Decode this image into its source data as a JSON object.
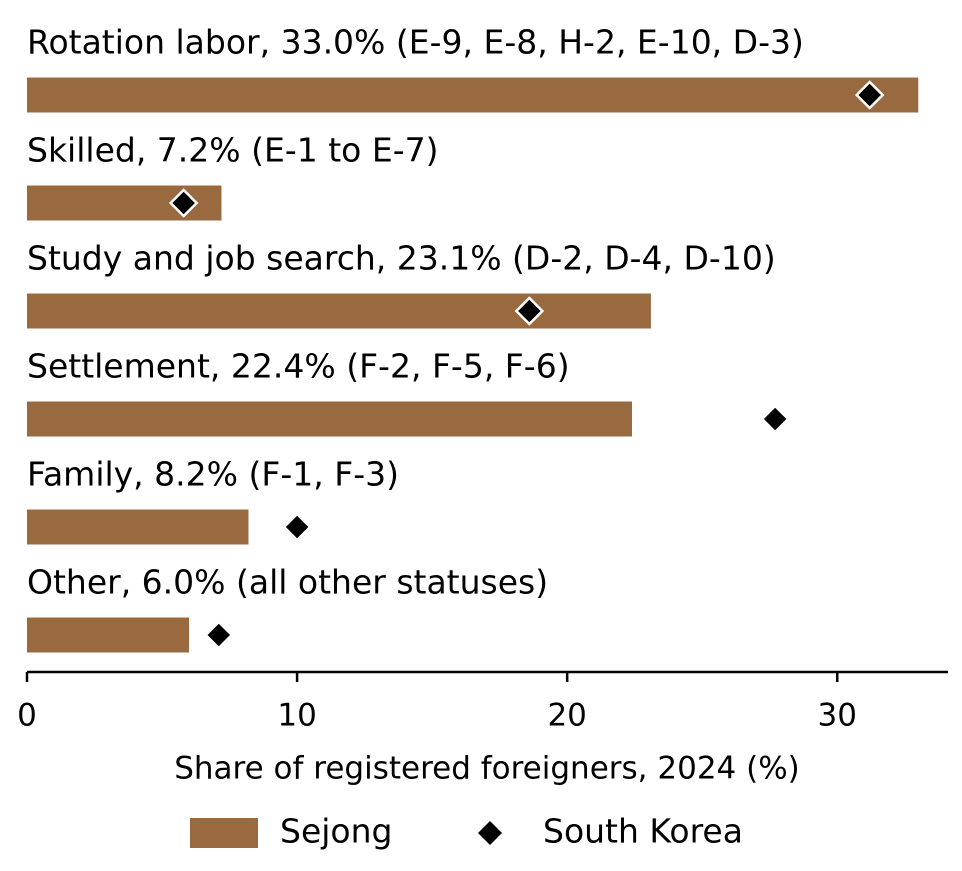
{
  "chart_data": {
    "type": "bar",
    "orientation": "horizontal",
    "categories": [
      "Rotation labor, 33.0% (E-9, E-8, H-2, E-10, D-3)",
      "Skilled, 7.2% (E-1 to E-7)",
      "Study and job search, 23.1% (D-2, D-4, D-10)",
      "Settlement, 22.4% (F-2, F-5, F-6)",
      "Family, 8.2% (F-1, F-3)",
      "Other, 6.0% (all other statuses)"
    ],
    "series": [
      {
        "name": "Sejong",
        "color": "#996a3f",
        "mark": "bar",
        "values": [
          33.0,
          7.2,
          23.1,
          22.4,
          8.2,
          6.0
        ]
      },
      {
        "name": "South Korea",
        "color": "#000000",
        "mark": "diamond",
        "values": [
          31.2,
          5.8,
          18.6,
          27.7,
          10.0,
          7.1
        ]
      }
    ],
    "x_label": "Share of registered foreigners, 2024 (%)",
    "xlim": [
      0,
      34.1
    ],
    "xticks": [
      0,
      10,
      20,
      30
    ],
    "legend": "bottom"
  }
}
